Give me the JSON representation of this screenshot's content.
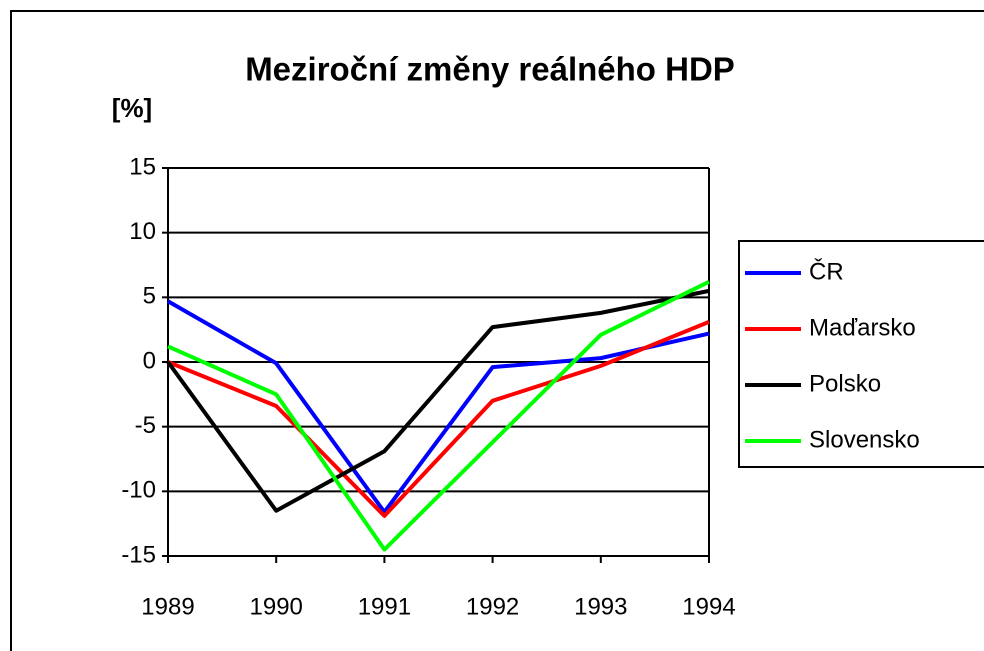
{
  "chart_data": {
    "type": "line",
    "title": "Meziroční změny reálného HDP",
    "y_label": "[%]",
    "categories": [
      "1989",
      "1990",
      "1991",
      "1992",
      "1993",
      "1994"
    ],
    "series": [
      {
        "name": "ČR",
        "color": "#0000ff",
        "values": [
          4.7,
          -0.1,
          -11.6,
          -0.4,
          0.3,
          2.2
        ]
      },
      {
        "name": "Maďarsko",
        "color": "#ff0000",
        "values": [
          0,
          -3.4,
          -11.9,
          -3.0,
          -0.3,
          3.1
        ]
      },
      {
        "name": "Polsko",
        "color": "#000000",
        "values": [
          0,
          -11.5,
          -6.9,
          2.7,
          3.8,
          5.5
        ]
      },
      {
        "name": "Slovensko",
        "color": "#00ff00",
        "values": [
          1.2,
          -2.5,
          -14.5,
          -6.2,
          2.1,
          6.2
        ]
      }
    ],
    "ylim": [
      -15,
      15
    ],
    "yticks": [
      -15,
      -10,
      -5,
      0,
      5,
      10,
      15
    ],
    "grid": true,
    "legend": "right"
  }
}
